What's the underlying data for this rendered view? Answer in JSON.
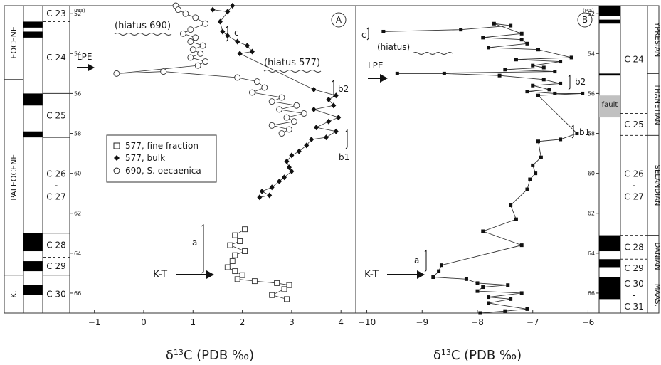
{
  "chart_data": [
    {
      "panel": "A",
      "type": "scatter",
      "xlabel": "δ13C (PDB ‰)",
      "ylabel": "(Ma)",
      "xlim": [
        -1.5,
        4.3
      ],
      "ylim": [
        51.6,
        67.0
      ],
      "xticks": [
        -1,
        0,
        1,
        2,
        3,
        4
      ],
      "yticks": [
        52,
        54,
        56,
        58,
        60,
        62,
        64,
        66
      ],
      "legend": {
        "placement": "center-left",
        "entries": [
          "577, fine fraction",
          "577, bulk",
          "690, S. oecaenica"
        ]
      },
      "annotations": [
        "(hiatus 690)",
        "(hiatus 577)",
        "LPE",
        "K-T",
        "a",
        "b1",
        "b2",
        "c"
      ],
      "chrons": [
        {
          "label": "C 23",
          "top": 51.6,
          "bottom": 52.4
        },
        {
          "label": "C 24",
          "top": 52.4,
          "bottom": 56.0
        },
        {
          "label": "C 25",
          "top": 56.0,
          "bottom": 58.2
        },
        {
          "label": "C 26\n-\nC 27",
          "top": 58.2,
          "bottom": 63.0
        },
        {
          "label": "C 28",
          "top": 63.0,
          "bottom": 64.2
        },
        {
          "label": "C 29",
          "top": 64.2,
          "bottom": 65.1
        },
        {
          "label": "C 30",
          "top": 65.1,
          "bottom": 67.0
        }
      ],
      "epochs": [
        {
          "label": "EOCENE",
          "top": 51.6,
          "bottom": 55.3
        },
        {
          "label": "PALEOCENE",
          "top": 55.3,
          "bottom": 65.1
        },
        {
          "label": "K.",
          "top": 65.1,
          "bottom": 67.0
        }
      ],
      "series": [
        {
          "name": "690, S. oecaenica",
          "marker": "circle",
          "points": [
            [
              0.65,
              51.6
            ],
            [
              0.7,
              51.8
            ],
            [
              0.85,
              52.0
            ],
            [
              1.05,
              52.2
            ],
            [
              1.25,
              52.5
            ],
            [
              0.95,
              52.8
            ],
            [
              0.8,
              53.0
            ],
            [
              1.05,
              53.2
            ],
            [
              0.95,
              53.4
            ],
            [
              1.2,
              53.6
            ],
            [
              1.0,
              53.8
            ],
            [
              1.15,
              54.0
            ],
            [
              0.95,
              54.2
            ],
            [
              1.25,
              54.4
            ],
            [
              1.1,
              54.6
            ],
            [
              -0.55,
              55.0
            ],
            [
              0.4,
              54.9
            ],
            [
              1.9,
              55.2
            ],
            [
              2.3,
              55.4
            ],
            [
              2.45,
              55.7
            ],
            [
              2.2,
              55.95
            ],
            [
              2.8,
              56.2
            ],
            [
              2.6,
              56.4
            ],
            [
              3.1,
              56.6
            ],
            [
              2.75,
              56.8
            ],
            [
              3.25,
              57.0
            ],
            [
              2.9,
              57.2
            ],
            [
              3.05,
              57.4
            ],
            [
              2.6,
              57.6
            ],
            [
              2.95,
              57.8
            ],
            [
              2.8,
              58.0
            ]
          ]
        },
        {
          "name": "577, bulk",
          "marker": "diamond",
          "points": [
            [
              1.4,
              51.8
            ],
            [
              1.7,
              51.9
            ],
            [
              1.8,
              51.6
            ],
            [
              1.55,
              52.4
            ],
            [
              1.6,
              52.9
            ],
            [
              1.7,
              53.1
            ],
            [
              1.9,
              53.4
            ],
            [
              2.1,
              53.6
            ],
            [
              2.2,
              53.9
            ],
            [
              1.95,
              54.0
            ],
            [
              3.45,
              55.8
            ],
            [
              3.9,
              56.1
            ],
            [
              3.75,
              56.3
            ],
            [
              3.85,
              56.6
            ],
            [
              3.45,
              56.8
            ],
            [
              3.95,
              57.2
            ],
            [
              3.75,
              57.4
            ],
            [
              3.5,
              57.7
            ],
            [
              3.9,
              57.9
            ],
            [
              3.7,
              58.2
            ],
            [
              3.4,
              58.3
            ],
            [
              3.3,
              58.6
            ],
            [
              3.15,
              58.9
            ],
            [
              3.0,
              59.1
            ],
            [
              2.9,
              59.4
            ],
            [
              2.95,
              59.7
            ],
            [
              3.0,
              59.9
            ],
            [
              2.85,
              60.2
            ],
            [
              2.75,
              60.4
            ],
            [
              2.6,
              60.7
            ],
            [
              2.4,
              60.9
            ],
            [
              2.55,
              61.1
            ],
            [
              2.35,
              61.2
            ]
          ]
        },
        {
          "name": "577, fine fraction",
          "marker": "square",
          "points": [
            [
              2.05,
              62.8
            ],
            [
              1.85,
              63.1
            ],
            [
              1.95,
              63.4
            ],
            [
              1.75,
              63.6
            ],
            [
              2.05,
              63.9
            ],
            [
              1.85,
              64.1
            ],
            [
              1.8,
              64.4
            ],
            [
              1.7,
              64.7
            ],
            [
              1.85,
              64.9
            ],
            [
              2.0,
              65.1
            ],
            [
              1.9,
              65.3
            ],
            [
              2.25,
              65.4
            ],
            [
              2.7,
              65.5
            ],
            [
              2.95,
              65.6
            ],
            [
              2.85,
              65.8
            ],
            [
              2.6,
              66.1
            ],
            [
              2.9,
              66.3
            ]
          ]
        }
      ]
    },
    {
      "panel": "B",
      "type": "line",
      "xlabel": "δ13C (PDB ‰)",
      "ylabel": "(Ma)",
      "xlim": [
        -10.2,
        -5.8
      ],
      "ylim": [
        51.6,
        67.0
      ],
      "xticks": [
        -10,
        -9,
        -8,
        -7,
        -6
      ],
      "yticks": [
        52,
        54,
        56,
        58,
        60,
        62,
        64,
        66
      ],
      "annotations": [
        "c",
        "(hiatus)",
        "LPE",
        "b2",
        "b1",
        "a",
        "K-T"
      ],
      "chrons": [
        {
          "label": "C 24",
          "top": 51.6,
          "bottom": 57.0
        },
        {
          "label": "C 25",
          "top": 57.0,
          "bottom": 58.1
        },
        {
          "label": "C 26\n-\nC 27",
          "top": 58.1,
          "bottom": 63.1
        },
        {
          "label": "C 28",
          "top": 63.1,
          "bottom": 64.3
        },
        {
          "label": "C 29",
          "top": 64.3,
          "bottom": 65.2
        },
        {
          "label": "C 30\n-\nC 31",
          "top": 65.2,
          "bottom": 67.0
        }
      ],
      "stages": [
        {
          "label": "YPRESIAN",
          "top": 51.6,
          "bottom": 55.0
        },
        {
          "label": "THANETIAN",
          "top": 55.0,
          "bottom": 58.1
        },
        {
          "label": "SELANDIAN",
          "top": 58.1,
          "bottom": 63.1
        },
        {
          "label": "DANIAN",
          "top": 63.1,
          "bottom": 65.2
        },
        {
          "label": "MAAS.",
          "top": 65.2,
          "bottom": 67.0
        }
      ],
      "fault_label": "fault",
      "series": [
        {
          "name": "",
          "marker": "square",
          "points": [
            [
              -9.7,
              52.9
            ],
            [
              -8.3,
              52.8
            ],
            [
              -7.4,
              52.6
            ],
            [
              -7.7,
              52.5
            ],
            [
              -7.2,
              53.0
            ],
            [
              -7.9,
              53.2
            ],
            [
              -7.2,
              53.3
            ],
            [
              -7.1,
              53.5
            ],
            [
              -7.8,
              53.7
            ],
            [
              -6.9,
              53.8
            ],
            [
              -6.3,
              54.2
            ],
            [
              -7.3,
              54.3
            ],
            [
              -6.5,
              54.4
            ],
            [
              -7.0,
              54.6
            ],
            [
              -6.8,
              54.7
            ],
            [
              -7.5,
              54.8
            ],
            [
              -6.6,
              54.9
            ],
            [
              -9.45,
              55.0
            ],
            [
              -8.6,
              55.0
            ],
            [
              -7.6,
              55.1
            ],
            [
              -6.8,
              55.3
            ],
            [
              -6.5,
              55.5
            ],
            [
              -7.0,
              55.6
            ],
            [
              -6.7,
              55.8
            ],
            [
              -7.1,
              55.9
            ],
            [
              -6.6,
              56.0
            ],
            [
              -6.1,
              56.0
            ],
            [
              -6.9,
              56.1
            ],
            [
              -6.2,
              58.0
            ],
            [
              -6.5,
              58.3
            ],
            [
              -6.9,
              58.4
            ],
            [
              -6.85,
              59.2
            ],
            [
              -7.0,
              59.6
            ],
            [
              -6.95,
              60.0
            ],
            [
              -7.05,
              60.3
            ],
            [
              -7.1,
              60.8
            ],
            [
              -7.4,
              61.6
            ],
            [
              -7.3,
              62.3
            ],
            [
              -7.9,
              62.9
            ],
            [
              -7.2,
              63.6
            ],
            [
              -8.65,
              64.6
            ],
            [
              -8.7,
              64.9
            ],
            [
              -8.8,
              65.2
            ],
            [
              -8.2,
              65.3
            ],
            [
              -8.0,
              65.5
            ],
            [
              -7.45,
              65.6
            ],
            [
              -7.9,
              65.7
            ],
            [
              -8.0,
              65.9
            ],
            [
              -7.2,
              66.0
            ],
            [
              -7.8,
              66.2
            ],
            [
              -7.4,
              66.3
            ],
            [
              -7.8,
              66.5
            ],
            [
              -7.1,
              66.8
            ],
            [
              -7.5,
              66.9
            ],
            [
              -7.95,
              67.0
            ]
          ]
        }
      ]
    }
  ]
}
